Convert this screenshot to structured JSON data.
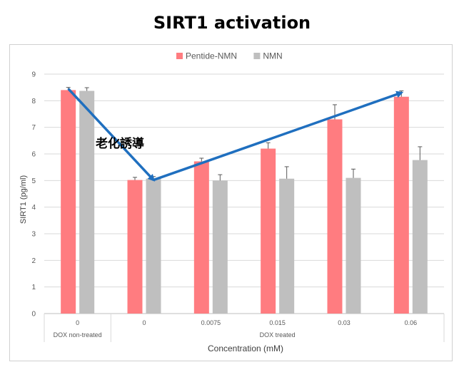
{
  "title": "SIRT1 activation",
  "chart_data": {
    "type": "bar",
    "title": "SIRT1 activation",
    "ylabel": "SIRT1 (pg/ml)",
    "xlabel": "Concentration (mM)",
    "ylim": [
      0,
      9
    ],
    "yticks": [
      0,
      1,
      2,
      3,
      4,
      5,
      6,
      7,
      8,
      9
    ],
    "grid": true,
    "legend_position": "top",
    "categories": [
      "0",
      "0",
      "0.0075",
      "0.015",
      "0.03",
      "0.06"
    ],
    "groups": [
      {
        "label": "DOX non-treated",
        "span": 1
      },
      {
        "label": "DOX treated",
        "span": 5
      }
    ],
    "series": [
      {
        "name": "Pentide-NMN",
        "color": "#ff7c80",
        "values": [
          8.4,
          5.02,
          5.72,
          6.2,
          7.3,
          8.15
        ],
        "errors": [
          0.1,
          0.1,
          0.12,
          0.22,
          0.55,
          0.22
        ]
      },
      {
        "name": "NMN",
        "color": "#bfbfbf",
        "values": [
          8.37,
          5.07,
          5.0,
          5.07,
          5.1,
          5.77
        ],
        "errors": [
          0.12,
          0.08,
          0.22,
          0.45,
          0.33,
          0.5
        ]
      }
    ],
    "annotation": {
      "text": "老化誘導",
      "color": "#1f6fbf",
      "arrows": [
        {
          "from": {
            "category_index": 0,
            "series": "Pentide-NMN",
            "value": 8.45
          },
          "to": {
            "category_index": 1,
            "series": "NMN",
            "value": 5.02
          }
        },
        {
          "from": {
            "category_index": 1,
            "series": "NMN",
            "value": 5.02
          },
          "to": {
            "category_index": 5,
            "series": "Pentide-NMN",
            "value": 8.3
          }
        }
      ]
    }
  }
}
